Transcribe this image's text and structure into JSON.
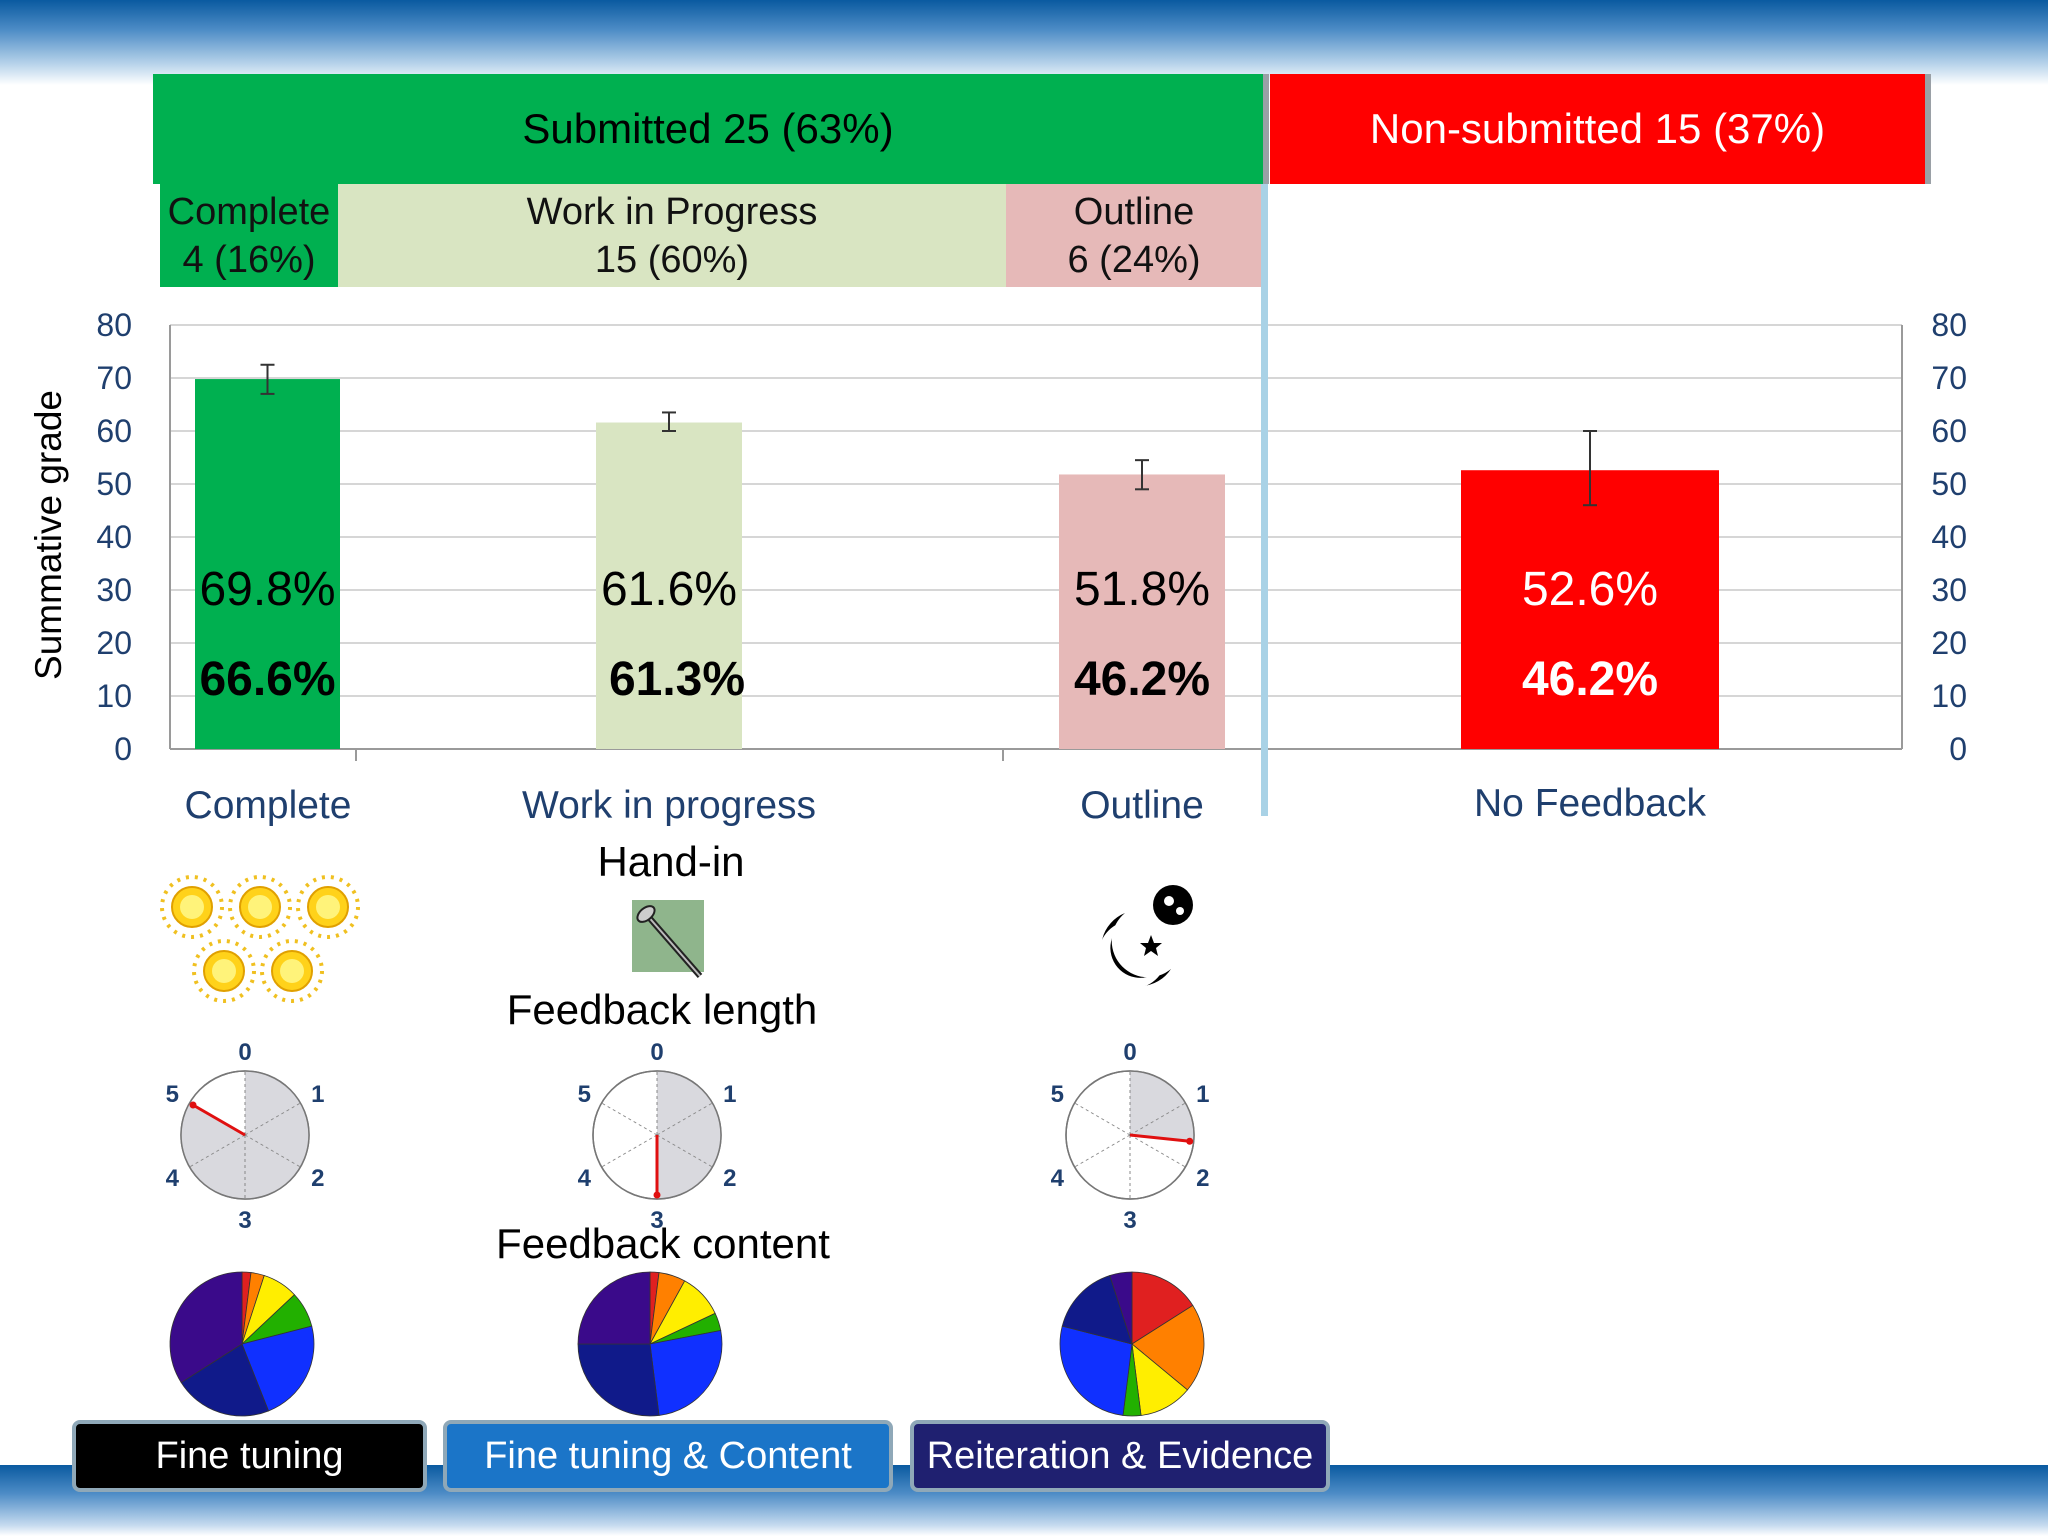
{
  "header": {
    "submitted": "Submitted 25 (63%)",
    "non_submitted": "Non-submitted 15 (37%)"
  },
  "subheaders": [
    {
      "name": "Complete",
      "count": "4 (16%)"
    },
    {
      "name": "Work in Progress",
      "count": "15 (60%)"
    },
    {
      "name": "Outline",
      "count": "6 (24%)"
    }
  ],
  "chart_data": {
    "type": "bar",
    "categories": [
      "Complete",
      "Work in progress",
      "Outline",
      "No Feedback"
    ],
    "values": [
      69.8,
      61.6,
      51.8,
      52.6
    ],
    "errors": [
      [
        67,
        72.5
      ],
      [
        60,
        63.5
      ],
      [
        49,
        54.5
      ],
      [
        46,
        60
      ]
    ],
    "value_labels": [
      "69.8%",
      "61.6%",
      "51.8%",
      "52.6%"
    ],
    "secondary_labels": [
      "66.6%",
      "61.3%",
      "46.2%",
      "46.2%"
    ],
    "colors": [
      "#00b050",
      "#d9e5c2",
      "#e6b9b8",
      "#ff0000"
    ],
    "label_colors": [
      "#000000",
      "#000000",
      "#000000",
      "#ffffff"
    ],
    "ylabel": "Summative grade",
    "ylim": [
      0,
      80
    ],
    "yticks": [
      0,
      10,
      20,
      30,
      40,
      50,
      60,
      70,
      80
    ],
    "grid": true
  },
  "sections": {
    "hand_in": "Hand-in",
    "feedback_length": "Feedback length",
    "feedback_content": "Feedback content"
  },
  "dial_labels": [
    "0",
    "1",
    "2",
    "3",
    "4",
    "5"
  ],
  "dials": [
    {
      "value": 5
    },
    {
      "value": 3
    },
    {
      "value": 1.6
    }
  ],
  "pies": [
    {
      "slices": [
        [
          0.02,
          "#e02020"
        ],
        [
          0.03,
          "#ff8000"
        ],
        [
          0.08,
          "#ffee00"
        ],
        [
          0.08,
          "#22b000"
        ],
        [
          0.23,
          "#1030ff"
        ],
        [
          0.22,
          "#101a8a"
        ],
        [
          0.34,
          "#3a0a8a"
        ]
      ]
    },
    {
      "slices": [
        [
          0.02,
          "#e02020"
        ],
        [
          0.06,
          "#ff8000"
        ],
        [
          0.1,
          "#ffee00"
        ],
        [
          0.04,
          "#22b000"
        ],
        [
          0.26,
          "#1030ff"
        ],
        [
          0.27,
          "#101a8a"
        ],
        [
          0.25,
          "#3a0a8a"
        ]
      ]
    },
    {
      "slices": [
        [
          0.16,
          "#e02020"
        ],
        [
          0.2,
          "#ff8000"
        ],
        [
          0.12,
          "#ffee00"
        ],
        [
          0.04,
          "#22b000"
        ],
        [
          0.27,
          "#1030ff"
        ],
        [
          0.16,
          "#101a8a"
        ],
        [
          0.05,
          "#3a0a8a"
        ]
      ]
    }
  ],
  "pills": [
    "Fine tuning",
    "Fine tuning & Content",
    "Reiteration & Evidence"
  ],
  "icons": {
    "complete": "sun-icons",
    "work_in_progress": "nail-icon",
    "outline": "moon-stars-icon"
  }
}
